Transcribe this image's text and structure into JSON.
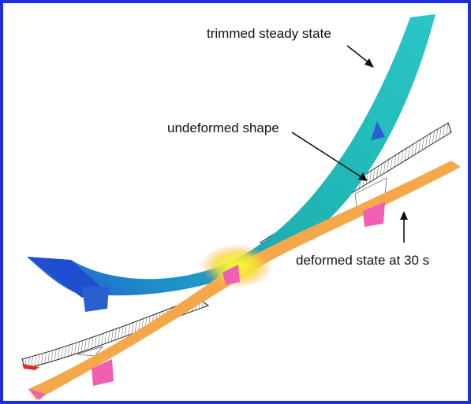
{
  "labels": {
    "trimmed": "trimmed steady state",
    "undeformed": "undeformed shape",
    "deformed": "deformed state at 30 s"
  },
  "colors": {
    "frame": "#1a2ee6",
    "trimmed_wing_root": "#1f5fd6",
    "trimmed_wing_mid": "#1fb3b3",
    "trimmed_wing_tip": "#27c9c9",
    "hot_spot": "#f2f21a",
    "deformed_wing": "#f5a84a",
    "undeformed_mesh": "#222222",
    "tail_blue": "#2a5fd0",
    "tail_pink": "#f05fb4"
  }
}
